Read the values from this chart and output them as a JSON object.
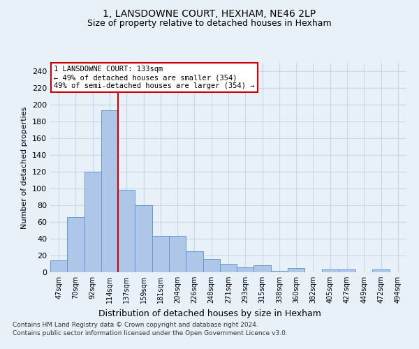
{
  "title1": "1, LANSDOWNE COURT, HEXHAM, NE46 2LP",
  "title2": "Size of property relative to detached houses in Hexham",
  "xlabel": "Distribution of detached houses by size in Hexham",
  "ylabel": "Number of detached properties",
  "categories": [
    "47sqm",
    "70sqm",
    "92sqm",
    "114sqm",
    "137sqm",
    "159sqm",
    "181sqm",
    "204sqm",
    "226sqm",
    "248sqm",
    "271sqm",
    "293sqm",
    "315sqm",
    "338sqm",
    "360sqm",
    "382sqm",
    "405sqm",
    "427sqm",
    "449sqm",
    "472sqm",
    "494sqm"
  ],
  "values": [
    14,
    66,
    120,
    193,
    98,
    80,
    43,
    43,
    25,
    16,
    10,
    6,
    8,
    2,
    5,
    0,
    3,
    3,
    0,
    3,
    0
  ],
  "bar_color": "#aec6e8",
  "bar_edge_color": "#6699cc",
  "vline_index": 3.5,
  "annotation_title": "1 LANSDOWNE COURT: 133sqm",
  "annotation_line1": "← 49% of detached houses are smaller (354)",
  "annotation_line2": "49% of semi-detached houses are larger (354) →",
  "annotation_box_color": "#ffffff",
  "annotation_box_edge": "#cc0000",
  "vline_color": "#cc0000",
  "ylim": [
    0,
    250
  ],
  "yticks": [
    0,
    20,
    40,
    60,
    80,
    100,
    120,
    140,
    160,
    180,
    200,
    220,
    240
  ],
  "grid_color": "#c8d8e8",
  "background_color": "#e8f0f8",
  "footer1": "Contains HM Land Registry data © Crown copyright and database right 2024.",
  "footer2": "Contains public sector information licensed under the Open Government Licence v3.0."
}
